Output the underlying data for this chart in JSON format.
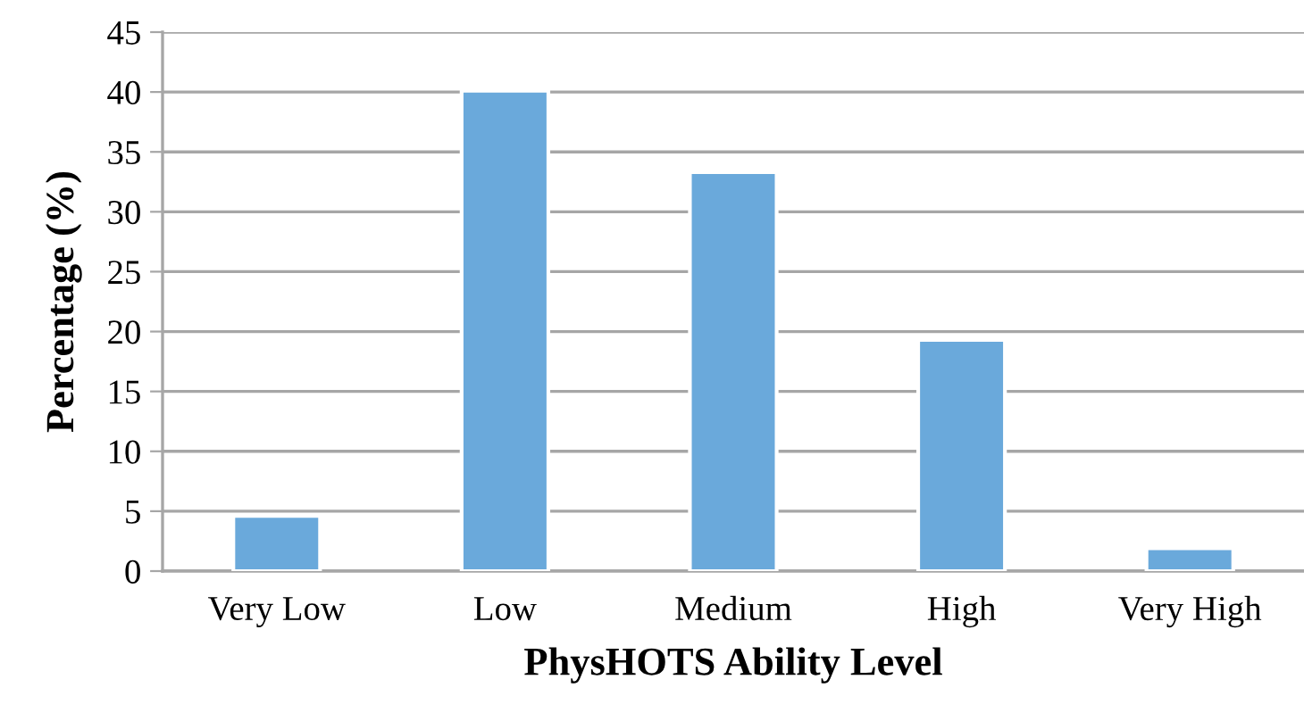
{
  "chart_data": {
    "type": "bar",
    "xlabel": "PhysHOTS Ability Level",
    "ylabel": "Percentage (%)",
    "categories": [
      "Very Low",
      "Low",
      "Medium",
      "High",
      "Very High"
    ],
    "values": [
      4.6,
      40.1,
      33.3,
      19.3,
      1.9
    ],
    "color": "#6aa9db",
    "ylim": [
      0,
      45
    ],
    "yticks": [
      0,
      5,
      10,
      15,
      20,
      25,
      30,
      35,
      40,
      45
    ],
    "grid": "y"
  }
}
